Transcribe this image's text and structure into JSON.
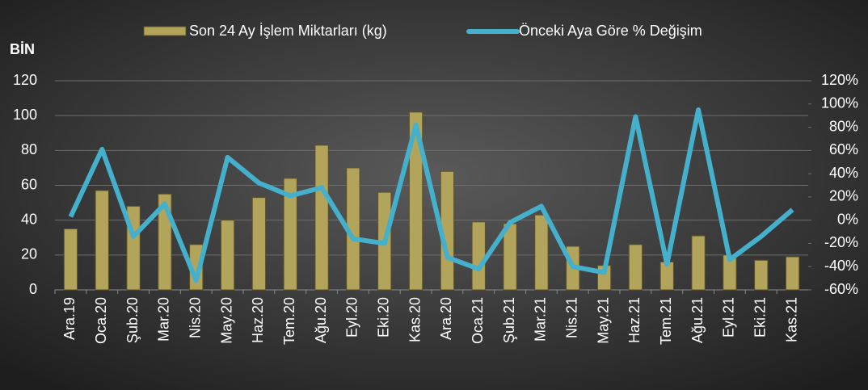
{
  "chart_data": {
    "type": "bar_line",
    "y_label": "BİN",
    "categories": [
      "Ara.19",
      "Oca.20",
      "Şub.20",
      "Mar.20",
      "Nis.20",
      "May.20",
      "Haz.20",
      "Tem.20",
      "Ağu.20",
      "Eyl.20",
      "Eki.20",
      "Kas.20",
      "Ara.20",
      "Oca.21",
      "Şub.21",
      "Mar.21",
      "Nis.21",
      "May.21",
      "Haz.21",
      "Tem.21",
      "Ağu.21",
      "Eyl.21",
      "Eki.21",
      "Kas.21"
    ],
    "series": [
      {
        "name": "Son 24 Ay İşlem Miktarları (kg)",
        "type": "bar",
        "color": "#b3a45c",
        "values": [
          35,
          57,
          48,
          55,
          26,
          40,
          53,
          64,
          83,
          70,
          56,
          102,
          68,
          39,
          38,
          43,
          25,
          14,
          26,
          16,
          31,
          20,
          17,
          19
        ]
      },
      {
        "name": "Önceki Aya Göre % Değişim",
        "type": "line",
        "color": "#45b0cb",
        "axis": "y2",
        "values": [
          3,
          61,
          -14,
          14,
          -52,
          54,
          32,
          21,
          28,
          -16,
          -20,
          82,
          -32,
          -42,
          -2,
          12,
          -40,
          -45,
          89,
          -38,
          95,
          -34,
          -14,
          9
        ]
      }
    ],
    "ylim": [
      0,
      120
    ],
    "yticks": [
      0,
      20,
      40,
      60,
      80,
      100,
      120
    ],
    "y2lim": [
      -60,
      120
    ],
    "y2ticks": [
      {
        "value": -60,
        "label": "-60%"
      },
      {
        "value": -40,
        "label": "-40%"
      },
      {
        "value": -20,
        "label": "-20%"
      },
      {
        "value": 0,
        "label": "0%"
      },
      {
        "value": 20,
        "label": "20%"
      },
      {
        "value": 40,
        "label": "40%"
      },
      {
        "value": 60,
        "label": "60%"
      },
      {
        "value": 80,
        "label": "80%"
      },
      {
        "value": 100,
        "label": "100%"
      },
      {
        "value": 120,
        "label": "120%"
      }
    ],
    "grid": true,
    "legend": "top"
  }
}
